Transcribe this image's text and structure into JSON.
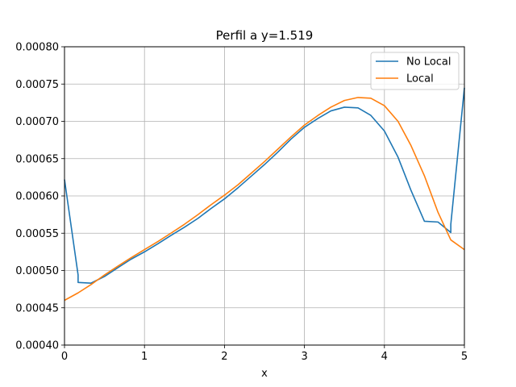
{
  "chart_data": {
    "type": "line",
    "title": "Perfil a y=1.519",
    "xlabel": "x",
    "ylabel": "",
    "xlim": [
      0,
      5
    ],
    "ylim": [
      0.0004,
      0.0008
    ],
    "xticks": [
      0,
      1,
      2,
      3,
      4,
      5
    ],
    "xtick_labels": [
      "0",
      "1",
      "2",
      "3",
      "4",
      "5"
    ],
    "yticks": [
      0.0004,
      0.00045,
      0.0005,
      0.00055,
      0.0006,
      0.00065,
      0.0007,
      0.00075,
      0.0008
    ],
    "ytick_labels": [
      "0.00040",
      "0.00045",
      "0.00050",
      "0.00055",
      "0.00060",
      "0.00065",
      "0.00070",
      "0.00075",
      "0.00080"
    ],
    "grid": true,
    "legend_position": "top-right",
    "series": [
      {
        "name": "No Local",
        "color": "#1f77b4",
        "x": [
          0,
          0.17,
          0.17,
          0.33,
          0.5,
          0.67,
          0.83,
          1.0,
          1.17,
          1.33,
          1.5,
          1.67,
          1.83,
          2.0,
          2.17,
          2.33,
          2.5,
          2.67,
          2.83,
          3.0,
          3.17,
          3.33,
          3.5,
          3.67,
          3.83,
          4.0,
          4.17,
          4.33,
          4.5,
          4.67,
          4.83,
          4.83,
          5.0
        ],
        "y": [
          0.000622,
          0.000494,
          0.000484,
          0.000483,
          0.000492,
          0.000504,
          0.000515,
          0.000525,
          0.000536,
          0.000547,
          0.000558,
          0.00057,
          0.000583,
          0.000596,
          0.000611,
          0.000626,
          0.000642,
          0.000659,
          0.000676,
          0.000692,
          0.000704,
          0.000714,
          0.000719,
          0.000718,
          0.000708,
          0.000687,
          0.000652,
          0.000608,
          0.000566,
          0.000565,
          0.000551,
          0.000562,
          0.000745
        ]
      },
      {
        "name": "Local",
        "color": "#ff7f0e",
        "x": [
          0,
          0.17,
          0.33,
          0.5,
          0.67,
          0.83,
          1.0,
          1.17,
          1.33,
          1.5,
          1.67,
          1.83,
          2.0,
          2.17,
          2.33,
          2.5,
          2.67,
          2.83,
          3.0,
          3.17,
          3.33,
          3.5,
          3.67,
          3.83,
          4.0,
          4.17,
          4.33,
          4.5,
          4.67,
          4.83,
          5.0
        ],
        "y": [
          0.00046,
          0.00047,
          0.000481,
          0.000494,
          0.000506,
          0.000517,
          0.000528,
          0.000539,
          0.00055,
          0.000562,
          0.000575,
          0.000588,
          0.000601,
          0.000615,
          0.00063,
          0.000646,
          0.000663,
          0.000679,
          0.000695,
          0.000708,
          0.000719,
          0.000728,
          0.000732,
          0.000731,
          0.000721,
          0.0007,
          0.000668,
          0.000627,
          0.000578,
          0.000541,
          0.000528
        ]
      }
    ]
  }
}
